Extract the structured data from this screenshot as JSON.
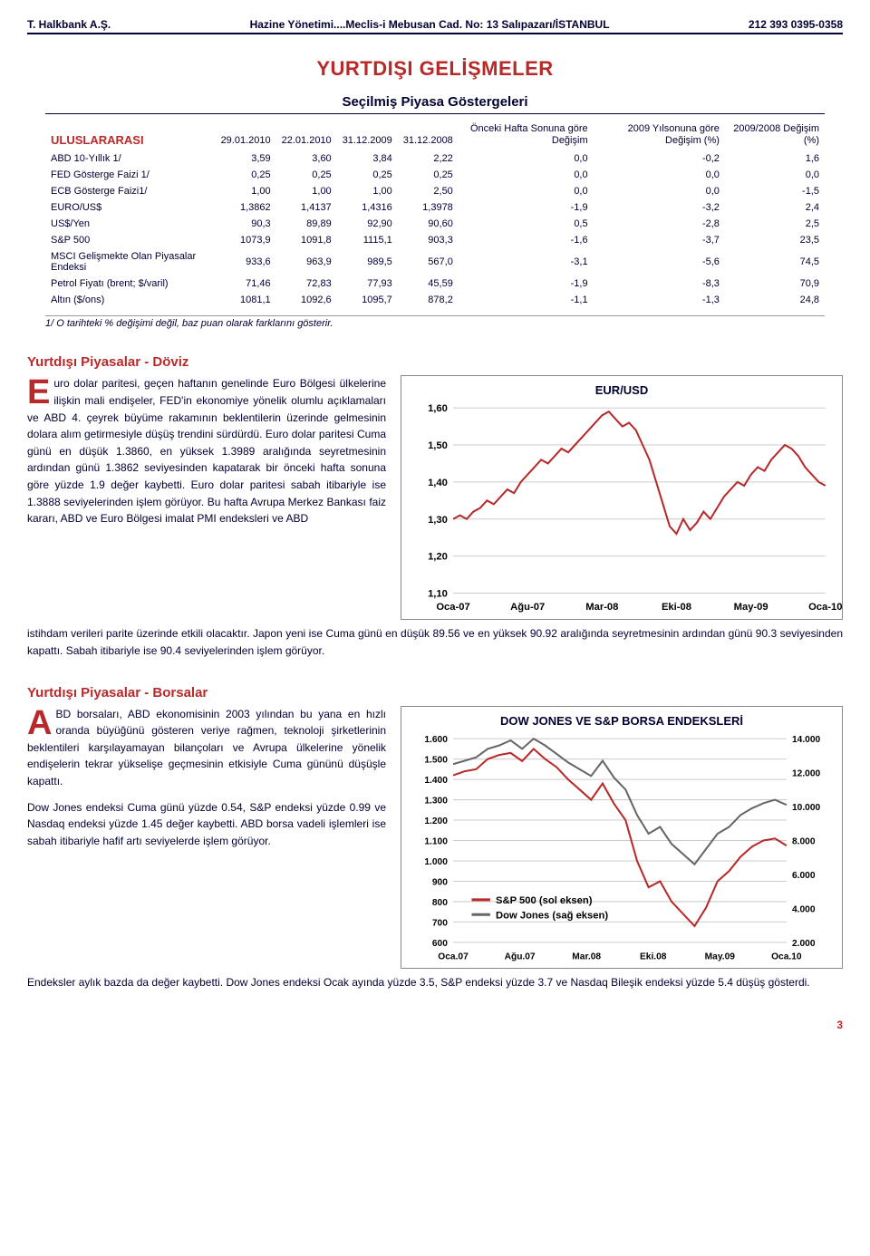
{
  "header": {
    "left": "T. Halkbank A.Ş.",
    "center": "Hazine Yönetimi....Meclis-i Mebusan Cad. No: 13  Salıpazarı/İSTANBUL",
    "right": "212 393 0395-0358"
  },
  "main_title": "YURTDIŞI GELİŞMELER",
  "table_title": "Seçilmiş Piyasa Göstergeleri",
  "table": {
    "first_header": "ULUSLARARASI",
    "headers": [
      "29.01.2010",
      "22.01.2010",
      "31.12.2009",
      "31.12.2008",
      "Önceki Hafta Sonuna göre Değişim",
      "2009 Yılsonuna göre Değişim (%)",
      "2009/2008 Değişim (%)"
    ],
    "rows": [
      [
        "ABD 10-Yıllık 1/",
        "3,59",
        "3,60",
        "3,84",
        "2,22",
        "0,0",
        "-0,2",
        "1,6"
      ],
      [
        "FED Gösterge Faizi 1/",
        "0,25",
        "0,25",
        "0,25",
        "0,25",
        "0,0",
        "0,0",
        "0,0"
      ],
      [
        "ECB Gösterge Faizi1/",
        "1,00",
        "1,00",
        "1,00",
        "2,50",
        "0,0",
        "0,0",
        "-1,5"
      ],
      [
        "EURO/US$",
        "1,3862",
        "1,4137",
        "1,4316",
        "1,3978",
        "-1,9",
        "-3,2",
        "2,4"
      ],
      [
        "US$/Yen",
        "90,3",
        "89,89",
        "92,90",
        "90,60",
        "0,5",
        "-2,8",
        "2,5"
      ],
      [
        "S&P 500",
        "1073,9",
        "1091,8",
        "1115,1",
        "903,3",
        "-1,6",
        "-3,7",
        "23,5"
      ],
      [
        "MSCI Gelişmekte Olan Piyasalar Endeksi",
        "933,6",
        "963,9",
        "989,5",
        "567,0",
        "-3,1",
        "-5,6",
        "74,5"
      ],
      [
        "Petrol Fiyatı (brent; $/varil)",
        "71,46",
        "72,83",
        "77,93",
        "45,59",
        "-1,9",
        "-8,3",
        "70,9"
      ],
      [
        "Altın ($/ons)",
        "1081,1",
        "1092,6",
        "1095,7",
        "878,2",
        "-1,1",
        "-1,3",
        "24,8"
      ]
    ],
    "footnote": "1/ O tarihteki % değişimi değil, baz puan olarak farklarını gösterir."
  },
  "doviz": {
    "title": "Yurtdışı Piyasalar - Döviz",
    "dropcap": "E",
    "body": "uro dolar paritesi, geçen haftanın genelinde Euro Bölgesi ülkelerine ilişkin mali endişeler, FED'in ekonomiye yönelik olumlu açıklamaları ve ABD 4. çeyrek büyüme rakamının beklentilerin üzerinde gelmesinin dolara alım getirmesiyle düşüş trendini sürdürdü. Euro dolar paritesi Cuma günü en düşük 1.3860, en yüksek 1.3989 aralığında seyretmesinin ardından günü 1.3862 seviyesinden kapatarak bir önceki hafta sonuna göre yüzde 1.9 değer kaybetti. Euro dolar paritesi sabah itibariyle ise 1.3888 seviyelerinden işlem görüyor. Bu hafta Avrupa Merkez Bankası faiz kararı, ABD ve Euro Bölgesi imalat PMI endeksleri ve ABD",
    "continuation": "istihdam verileri parite üzerinde etkili olacaktır. Japon yeni ise Cuma günü en düşük 89.56 ve en yüksek 90.92 aralığında seyretmesinin ardından günü 90.3 seviyesinden kapattı. Sabah itibariyle ise 90.4 seviyelerinden işlem görüyor."
  },
  "eurusd_chart": {
    "type": "line",
    "title": "EUR/USD",
    "ylim": [
      1.1,
      1.6
    ],
    "yticks": [
      "1,10",
      "1,20",
      "1,30",
      "1,40",
      "1,50",
      "1,60"
    ],
    "xticks": [
      "Oca-07",
      "Ağu-07",
      "Mar-08",
      "Eki-08",
      "May-09",
      "Oca-10"
    ],
    "line_color": "#b82a2a",
    "grid_color": "#cccccc",
    "background_color": "#ffffff",
    "data_points": [
      [
        0,
        1.3
      ],
      [
        1,
        1.31
      ],
      [
        2,
        1.3
      ],
      [
        3,
        1.32
      ],
      [
        4,
        1.33
      ],
      [
        5,
        1.35
      ],
      [
        6,
        1.34
      ],
      [
        7,
        1.36
      ],
      [
        8,
        1.38
      ],
      [
        9,
        1.37
      ],
      [
        10,
        1.4
      ],
      [
        11,
        1.42
      ],
      [
        12,
        1.44
      ],
      [
        13,
        1.46
      ],
      [
        14,
        1.45
      ],
      [
        15,
        1.47
      ],
      [
        16,
        1.49
      ],
      [
        17,
        1.48
      ],
      [
        18,
        1.5
      ],
      [
        19,
        1.52
      ],
      [
        20,
        1.54
      ],
      [
        21,
        1.56
      ],
      [
        22,
        1.58
      ],
      [
        23,
        1.59
      ],
      [
        24,
        1.57
      ],
      [
        25,
        1.55
      ],
      [
        26,
        1.56
      ],
      [
        27,
        1.54
      ],
      [
        28,
        1.5
      ],
      [
        29,
        1.46
      ],
      [
        30,
        1.4
      ],
      [
        31,
        1.34
      ],
      [
        32,
        1.28
      ],
      [
        33,
        1.26
      ],
      [
        34,
        1.3
      ],
      [
        35,
        1.27
      ],
      [
        36,
        1.29
      ],
      [
        37,
        1.32
      ],
      [
        38,
        1.3
      ],
      [
        39,
        1.33
      ],
      [
        40,
        1.36
      ],
      [
        41,
        1.38
      ],
      [
        42,
        1.4
      ],
      [
        43,
        1.39
      ],
      [
        44,
        1.42
      ],
      [
        45,
        1.44
      ],
      [
        46,
        1.43
      ],
      [
        47,
        1.46
      ],
      [
        48,
        1.48
      ],
      [
        49,
        1.5
      ],
      [
        50,
        1.49
      ],
      [
        51,
        1.47
      ],
      [
        52,
        1.44
      ],
      [
        53,
        1.42
      ],
      [
        54,
        1.4
      ],
      [
        55,
        1.39
      ]
    ]
  },
  "borsalar": {
    "title": "Yurtdışı Piyasalar - Borsalar",
    "dropcap": "A",
    "body": "BD borsaları, ABD ekonomisinin 2003 yılından bu yana en hızlı oranda büyüğünü gösteren veriye rağmen, teknoloji şirketlerinin beklentileri karşılayamayan bilançoları ve Avrupa ülkelerine yönelik endişelerin tekrar yükselişe geçmesinin etkisiyle Cuma gününü düşüşle kapattı.",
    "body2": "Dow Jones endeksi Cuma günü yüzde 0.54, S&P endeksi yüzde 0.99 ve Nasdaq endeksi yüzde 1.45 değer kaybetti. ABD borsa vadeli işlemleri ise sabah itibariyle hafif artı seviyelerde işlem görüyor.",
    "continuation": "Endeksler aylık bazda da değer kaybetti. Dow Jones endeksi Ocak ayında yüzde 3.5, S&P endeksi yüzde 3.7 ve Nasdaq Bileşik endeksi yüzde 5.4 düşüş gösterdi."
  },
  "dow_chart": {
    "type": "line-dual-axis",
    "title": "DOW JONES VE S&P BORSA ENDEKSLERİ",
    "left_ylim": [
      600,
      1600
    ],
    "right_ylim": [
      2000,
      14000
    ],
    "left_yticks": [
      "600",
      "700",
      "800",
      "900",
      "1.000",
      "1.100",
      "1.200",
      "1.300",
      "1.400",
      "1.500",
      "1.600"
    ],
    "right_yticks": [
      "2.000",
      "4.000",
      "6.000",
      "8.000",
      "10.000",
      "12.000",
      "14.000"
    ],
    "xticks": [
      "Oca.07",
      "Ağu.07",
      "Mar.08",
      "Eki.08",
      "May.09",
      "Oca.10"
    ],
    "legend": [
      "S&P 500 (sol eksen)",
      "Dow Jones (sağ eksen)"
    ],
    "sp_color": "#b82a2a",
    "dj_color": "#666666",
    "grid_color": "#cccccc",
    "sp_data": [
      [
        0,
        1420
      ],
      [
        2,
        1440
      ],
      [
        4,
        1450
      ],
      [
        6,
        1500
      ],
      [
        8,
        1520
      ],
      [
        10,
        1530
      ],
      [
        12,
        1490
      ],
      [
        14,
        1550
      ],
      [
        16,
        1500
      ],
      [
        18,
        1460
      ],
      [
        20,
        1400
      ],
      [
        22,
        1350
      ],
      [
        24,
        1300
      ],
      [
        26,
        1380
      ],
      [
        28,
        1280
      ],
      [
        30,
        1200
      ],
      [
        32,
        1000
      ],
      [
        34,
        870
      ],
      [
        36,
        900
      ],
      [
        38,
        800
      ],
      [
        40,
        740
      ],
      [
        42,
        680
      ],
      [
        44,
        770
      ],
      [
        46,
        900
      ],
      [
        48,
        950
      ],
      [
        50,
        1020
      ],
      [
        52,
        1070
      ],
      [
        54,
        1100
      ],
      [
        56,
        1110
      ],
      [
        58,
        1075
      ]
    ],
    "dj_data": [
      [
        0,
        12500
      ],
      [
        2,
        12700
      ],
      [
        4,
        12900
      ],
      [
        6,
        13400
      ],
      [
        8,
        13600
      ],
      [
        10,
        13900
      ],
      [
        12,
        13400
      ],
      [
        14,
        14000
      ],
      [
        16,
        13600
      ],
      [
        18,
        13100
      ],
      [
        20,
        12600
      ],
      [
        22,
        12200
      ],
      [
        24,
        11800
      ],
      [
        26,
        12700
      ],
      [
        28,
        11700
      ],
      [
        30,
        11000
      ],
      [
        32,
        9500
      ],
      [
        34,
        8400
      ],
      [
        36,
        8800
      ],
      [
        38,
        7800
      ],
      [
        40,
        7200
      ],
      [
        42,
        6600
      ],
      [
        44,
        7500
      ],
      [
        46,
        8400
      ],
      [
        48,
        8800
      ],
      [
        50,
        9500
      ],
      [
        52,
        9900
      ],
      [
        54,
        10200
      ],
      [
        56,
        10400
      ],
      [
        58,
        10100
      ]
    ]
  },
  "page_number": "3"
}
